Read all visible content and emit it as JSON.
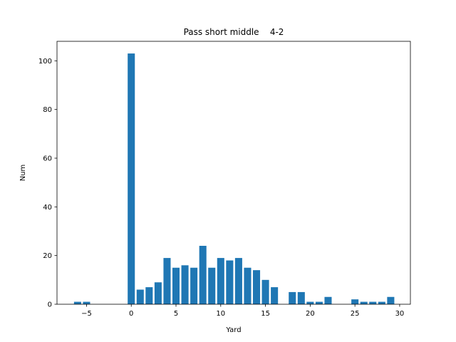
{
  "chart_data": {
    "type": "bar",
    "title": "Pass short middle    4-2",
    "xlabel": "Yard",
    "ylabel": "Num",
    "xlim": [
      -8.3,
      31.2
    ],
    "ylim": [
      0,
      108
    ],
    "x_ticks": [
      -5,
      0,
      5,
      10,
      15,
      20,
      25,
      30
    ],
    "x_tick_labels": [
      "−5",
      "0",
      "5",
      "10",
      "15",
      "20",
      "25",
      "30"
    ],
    "y_ticks": [
      0,
      20,
      40,
      60,
      80,
      100
    ],
    "y_tick_labels": [
      "0",
      "20",
      "40",
      "60",
      "80",
      "100"
    ],
    "bar_color": "#1f77b4",
    "bar_width": 0.8,
    "grid": false,
    "x": [
      -6,
      -5,
      0,
      1,
      2,
      3,
      4,
      5,
      6,
      7,
      8,
      9,
      10,
      11,
      12,
      13,
      14,
      15,
      16,
      18,
      19,
      20,
      21,
      22,
      25,
      26,
      27,
      28,
      29
    ],
    "values": [
      1,
      1,
      103,
      6,
      7,
      9,
      19,
      15,
      16,
      15,
      24,
      15,
      19,
      18,
      19,
      15,
      14,
      10,
      7,
      5,
      5,
      1,
      1,
      3,
      2,
      1,
      1,
      1,
      3
    ]
  }
}
